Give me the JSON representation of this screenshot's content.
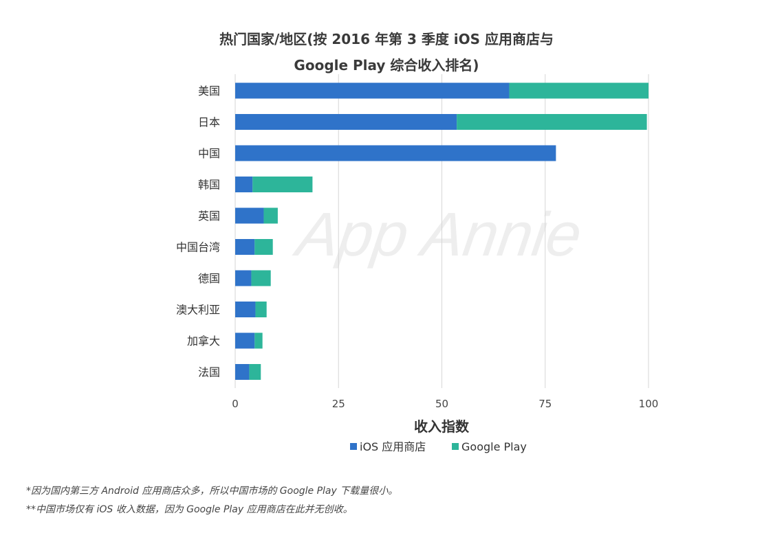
{
  "title": {
    "line1": "热门国家/地区(按 2016 年第 3 季度 iOS 应用商店与",
    "line2": "Google Play 综合收入排名)"
  },
  "watermark": "App Annie",
  "colors": {
    "ios": "#2f73c9",
    "google_play": "#2db59a",
    "grid": "#d6d6d6"
  },
  "chart_data": {
    "type": "bar",
    "orientation": "horizontal",
    "stacked": true,
    "categories": [
      "美国",
      "日本",
      "中国",
      "韩国",
      "英国",
      "中国台湾",
      "德国",
      "澳大利亚",
      "加拿大",
      "法国"
    ],
    "series": [
      {
        "name": "iOS 应用商店",
        "color": "#2f73c9",
        "values": [
          66.3,
          53.6,
          77.6,
          4.2,
          6.9,
          4.7,
          3.9,
          4.9,
          4.7,
          3.4
        ]
      },
      {
        "name": "Google Play",
        "color": "#2db59a",
        "values": [
          33.7,
          46.0,
          0,
          14.5,
          3.4,
          4.4,
          4.7,
          2.7,
          1.9,
          2.8
        ]
      }
    ],
    "xlabel": "收入指数",
    "xlim": [
      0,
      100
    ],
    "xticks": [
      "0",
      "25",
      "50",
      "75",
      "100"
    ],
    "grid": "vertical",
    "legend_position": "bottom"
  },
  "footnotes": [
    "*因为国内第三方 Android 应用商店众多，所以中国市场的 Google Play 下载量很小。",
    "**中国市场仅有 iOS 收入数据，因为 Google Play 应用商店在此并无创收。"
  ]
}
